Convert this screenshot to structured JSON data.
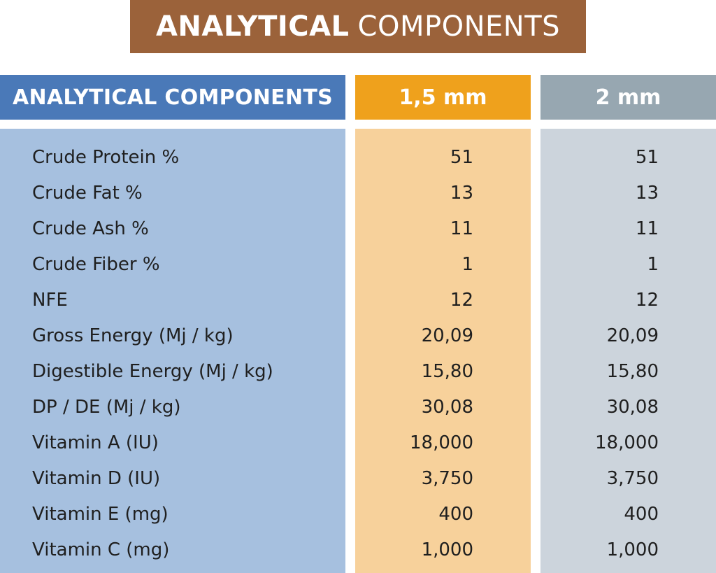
{
  "title": {
    "bold": "ANALYTICAL",
    "light": "COMPONENTS"
  },
  "table": {
    "headers": [
      "ANALYTICAL COMPONENTS",
      "1,5 mm",
      "2 mm"
    ],
    "rows": [
      {
        "label": "Crude Protein %",
        "v1": "51",
        "v2": "51"
      },
      {
        "label": "Crude Fat %",
        "v1": "13",
        "v2": "13"
      },
      {
        "label": "Crude Ash %",
        "v1": "11",
        "v2": "11"
      },
      {
        "label": "Crude Fiber %",
        "v1": "1",
        "v2": "1"
      },
      {
        "label": "NFE",
        "v1": "12",
        "v2": "12"
      },
      {
        "label": "Gross Energy (Mj / kg)",
        "v1": "20,09",
        "v2": "20,09"
      },
      {
        "label": "Digestible Energy (Mj / kg)",
        "v1": "15,80",
        "v2": "15,80"
      },
      {
        "label": "DP / DE (Mj / kg)",
        "v1": "30,08",
        "v2": "30,08"
      },
      {
        "label": "Vitamin A (IU)",
        "v1": "18,000",
        "v2": "18,000"
      },
      {
        "label": "Vitamin D (IU)",
        "v1": "3,750",
        "v2": "3,750"
      },
      {
        "label": "Vitamin E (mg)",
        "v1": "400",
        "v2": "400"
      },
      {
        "label": "Vitamin C (mg)",
        "v1": "1,000",
        "v2": "1,000"
      }
    ]
  },
  "colors": {
    "banner": "#9b623a",
    "header_label": "#4a79b8",
    "header_1_5mm": "#efa11c",
    "header_2mm": "#97a7b1",
    "body_label": "#a6c0df",
    "body_1_5mm": "#f7d19b",
    "body_2mm": "#ccd4dc"
  }
}
